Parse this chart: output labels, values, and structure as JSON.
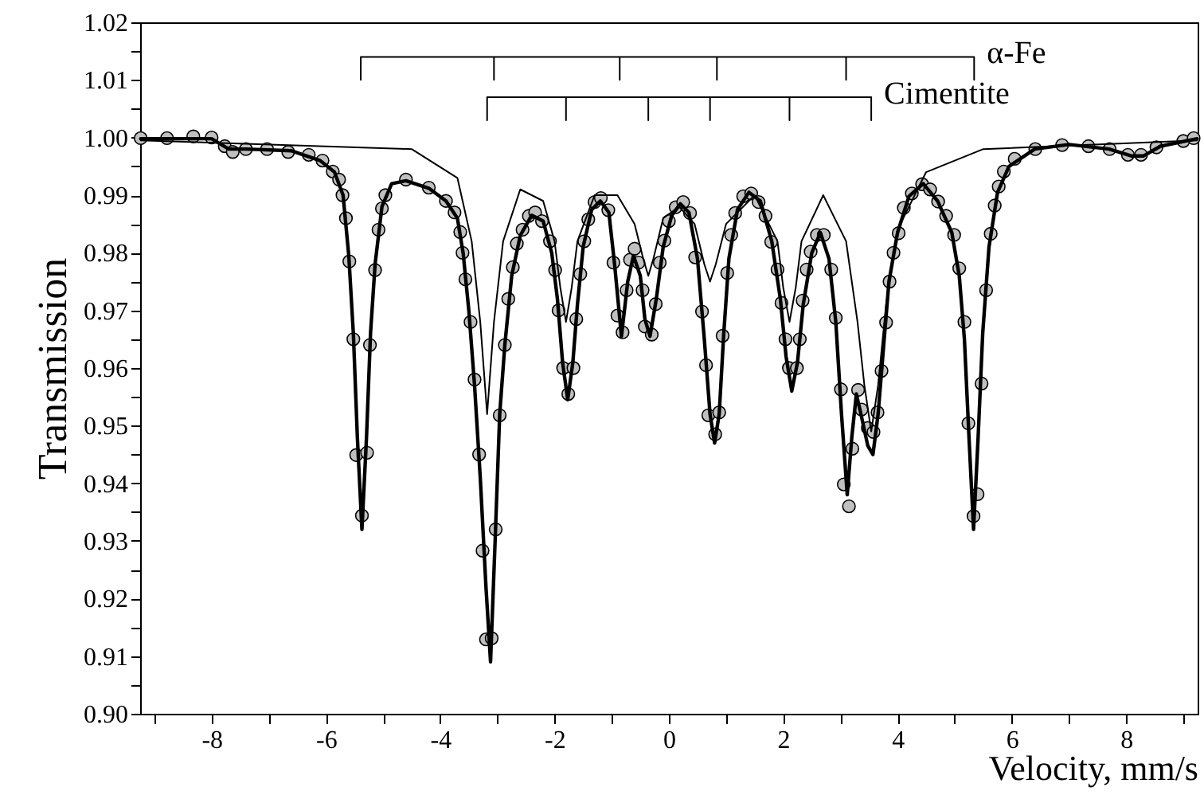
{
  "chart_data": {
    "type": "scatter",
    "xlabel": "Velocity, mm/s",
    "ylabel": "Transmission",
    "xlim": [
      -9.25,
      9.25
    ],
    "xticks": [
      {
        "value": -9,
        "label": null
      },
      -8,
      {
        "value": -7,
        "label": null
      },
      -6,
      {
        "value": -5,
        "label": null
      },
      -4,
      {
        "value": -3,
        "label": null
      },
      -2,
      {
        "value": -1,
        "label": null
      },
      0,
      {
        "value": 1,
        "label": null
      },
      2,
      {
        "value": 3,
        "label": null
      },
      4,
      {
        "value": 5,
        "label": null
      },
      6,
      {
        "value": 7,
        "label": null
      },
      8,
      {
        "value": 9,
        "label": null
      }
    ],
    "ylim": [
      0.9,
      1.02
    ],
    "yticks": [
      {
        "value": 0.9,
        "label": "0.90"
      },
      {
        "value": 0.905,
        "label": null
      },
      {
        "value": 0.91,
        "label": "0.91"
      },
      {
        "value": 0.915,
        "label": null
      },
      {
        "value": 0.92,
        "label": "0.92"
      },
      {
        "value": 0.925,
        "label": null
      },
      {
        "value": 0.93,
        "label": "0.93"
      },
      {
        "value": 0.935,
        "label": null
      },
      {
        "value": 0.94,
        "label": "0.94"
      },
      {
        "value": 0.945,
        "label": null
      },
      {
        "value": 0.95,
        "label": "0.95"
      },
      {
        "value": 0.955,
        "label": null
      },
      {
        "value": 0.96,
        "label": "0.96"
      },
      {
        "value": 0.965,
        "label": null
      },
      {
        "value": 0.97,
        "label": "0.97"
      },
      {
        "value": 0.975,
        "label": null
      },
      {
        "value": 0.98,
        "label": "0.98"
      },
      {
        "value": 0.985,
        "label": null
      },
      {
        "value": 0.99,
        "label": "0.99"
      },
      {
        "value": 0.995,
        "label": null
      },
      {
        "value": 1.0,
        "label": "1.00"
      },
      {
        "value": 1.005,
        "label": null
      },
      {
        "value": 1.01,
        "label": "1.01"
      },
      {
        "value": 1.015,
        "label": null
      },
      {
        "value": 1.02,
        "label": "1.02"
      }
    ],
    "grid": false,
    "series": [
      {
        "color": "#c0c0c0",
        "marker": "circle",
        "x": [
          -9.24,
          -8.78,
          -8.32,
          -8.0,
          -7.77,
          -7.63,
          -7.4,
          -7.03,
          -6.66,
          -6.3,
          -6.06,
          -5.88,
          -5.77,
          -5.71,
          -5.65,
          -5.59,
          -5.52,
          -5.47,
          -5.37,
          -5.28,
          -5.23,
          -5.14,
          -5.08,
          -5.02,
          -4.96,
          -4.6,
          -4.2,
          -3.9,
          -3.75,
          -3.65,
          -3.61,
          -3.56,
          -3.47,
          -3.4,
          -3.32,
          -3.26,
          -3.2,
          -3.1,
          -3.03,
          -2.96,
          -2.87,
          -2.81,
          -2.73,
          -2.66,
          -2.56,
          -2.45,
          -2.34,
          -2.22,
          -2.08,
          -1.99,
          -1.93,
          -1.85,
          -1.76,
          -1.67,
          -1.62,
          -1.55,
          -1.48,
          -1.41,
          -1.3,
          -1.19,
          -1.06,
          -0.97,
          -0.9,
          -0.81,
          -0.74,
          -0.68,
          -0.6,
          -0.53,
          -0.46,
          -0.42,
          -0.3,
          -0.23,
          -0.16,
          -0.08,
          0.0,
          0.12,
          0.25,
          0.37,
          0.46,
          0.58,
          0.65,
          0.69,
          0.81,
          0.88,
          0.94,
          1.02,
          1.09,
          1.16,
          1.3,
          1.44,
          1.57,
          1.69,
          1.79,
          1.9,
          1.97,
          2.04,
          2.1,
          2.24,
          2.29,
          2.34,
          2.41,
          2.48,
          2.59,
          2.71,
          2.84,
          2.92,
          3.01,
          3.06,
          3.15,
          3.21,
          3.31,
          3.37,
          3.48,
          3.58,
          3.65,
          3.72,
          3.8,
          3.86,
          3.93,
          4.02,
          4.11,
          4.25,
          4.43,
          4.57,
          4.71,
          4.85,
          4.99,
          5.08,
          5.17,
          5.24,
          5.33,
          5.4,
          5.47,
          5.55,
          5.63,
          5.7,
          5.77,
          5.86,
          6.05,
          6.41,
          6.88,
          7.34,
          7.71,
          8.03,
          8.26,
          8.53,
          9.0,
          9.18
        ],
        "values": [
          0.9999,
          0.9999,
          1.0002,
          1.0,
          0.9985,
          0.9975,
          0.998,
          0.998,
          0.9975,
          0.997,
          0.996,
          0.9941,
          0.9927,
          0.99,
          0.986,
          0.9785,
          0.965,
          0.9449,
          0.9344,
          0.9453,
          0.964,
          0.977,
          0.984,
          0.9877,
          0.99,
          0.9927,
          0.9913,
          0.989,
          0.987,
          0.9836,
          0.98,
          0.9754,
          0.968,
          0.958,
          0.945,
          0.9283,
          0.9129,
          0.9131,
          0.932,
          0.9518,
          0.964,
          0.972,
          0.9775,
          0.9816,
          0.984,
          0.9864,
          0.987,
          0.9855,
          0.982,
          0.977,
          0.97,
          0.96,
          0.9555,
          0.96,
          0.9685,
          0.9763,
          0.982,
          0.9858,
          0.9888,
          0.9895,
          0.9874,
          0.9783,
          0.9691,
          0.9662,
          0.9735,
          0.9788,
          0.9807,
          0.9783,
          0.9735,
          0.9672,
          0.9658,
          0.9711,
          0.9783,
          0.9821,
          0.9855,
          0.9879,
          0.9888,
          0.9869,
          0.9792,
          0.9698,
          0.9605,
          0.9518,
          0.9485,
          0.9523,
          0.9656,
          0.9765,
          0.9831,
          0.9869,
          0.9898,
          0.9903,
          0.9888,
          0.9864,
          0.9819,
          0.9771,
          0.9713,
          0.965,
          0.96,
          0.96,
          0.965,
          0.9717,
          0.9771,
          0.9802,
          0.9831,
          0.9831,
          0.9771,
          0.9687,
          0.9563,
          0.9398,
          0.936,
          0.946,
          0.9562,
          0.9528,
          0.9496,
          0.9489,
          0.9523,
          0.9595,
          0.9679,
          0.975,
          0.98,
          0.9834,
          0.9878,
          0.9903,
          0.9919,
          0.991,
          0.9889,
          0.9864,
          0.9831,
          0.9773,
          0.968,
          0.9504,
          0.9343,
          0.9381,
          0.9573,
          0.9735,
          0.9833,
          0.9882,
          0.9915,
          0.9941,
          0.9963,
          0.998,
          0.9987,
          0.9985,
          0.998,
          0.997,
          0.997,
          0.9983,
          0.9994,
          0.9999
        ]
      },
      {
        "type": "line",
        "marker": "none",
        "line_style": "solid",
        "color": "#000000",
        "x": [
          -9.24,
          -8.0,
          -7.7,
          -7.4,
          -6.6,
          -6.1,
          -5.85,
          -5.7,
          -5.6,
          -5.52,
          -5.45,
          -5.37,
          -5.29,
          -5.22,
          -5.14,
          -5.02,
          -4.85,
          -4.6,
          -4.2,
          -3.9,
          -3.7,
          -3.6,
          -3.5,
          -3.4,
          -3.3,
          -3.2,
          -3.12,
          -3.04,
          -2.96,
          -2.87,
          -2.75,
          -2.6,
          -2.4,
          -2.2,
          -2.05,
          -1.95,
          -1.86,
          -1.77,
          -1.68,
          -1.6,
          -1.5,
          -1.35,
          -1.2,
          -1.05,
          -0.95,
          -0.83,
          -0.72,
          -0.62,
          -0.5,
          -0.42,
          -0.33,
          -0.22,
          -0.1,
          0.05,
          0.2,
          0.35,
          0.5,
          0.62,
          0.72,
          0.8,
          0.88,
          0.96,
          1.05,
          1.2,
          1.4,
          1.6,
          1.8,
          1.95,
          2.05,
          2.15,
          2.25,
          2.35,
          2.5,
          2.65,
          2.8,
          2.92,
          3.02,
          3.12,
          3.2,
          3.28,
          3.36,
          3.48,
          3.57,
          3.66,
          3.75,
          3.85,
          4.0,
          4.2,
          4.45,
          4.7,
          4.95,
          5.08,
          5.17,
          5.25,
          5.33,
          5.41,
          5.49,
          5.6,
          5.75,
          5.95,
          6.4,
          7.0,
          7.7,
          8.1,
          8.3,
          8.6,
          9.24
        ],
        "values": [
          0.9998,
          0.9998,
          0.998,
          0.998,
          0.9977,
          0.996,
          0.994,
          0.99,
          0.9795,
          0.966,
          0.948,
          0.932,
          0.948,
          0.966,
          0.978,
          0.988,
          0.992,
          0.9925,
          0.9912,
          0.989,
          0.986,
          0.98,
          0.97,
          0.957,
          0.941,
          0.922,
          0.909,
          0.93,
          0.952,
          0.964,
          0.976,
          0.983,
          0.9865,
          0.9855,
          0.98,
          0.972,
          0.961,
          0.9545,
          0.961,
          0.971,
          0.981,
          0.9875,
          0.989,
          0.987,
          0.978,
          0.9655,
          0.975,
          0.9795,
          0.976,
          0.9685,
          0.9655,
          0.972,
          0.981,
          0.9865,
          0.9885,
          0.987,
          0.979,
          0.965,
          0.952,
          0.947,
          0.952,
          0.966,
          0.979,
          0.9875,
          0.9905,
          0.989,
          0.982,
          0.972,
          0.962,
          0.956,
          0.961,
          0.971,
          0.98,
          0.9835,
          0.979,
          0.968,
          0.952,
          0.938,
          0.948,
          0.9555,
          0.952,
          0.9465,
          0.945,
          0.952,
          0.963,
          0.975,
          0.9835,
          0.9898,
          0.992,
          0.989,
          0.9835,
          0.976,
          0.965,
          0.948,
          0.932,
          0.948,
          0.966,
          0.981,
          0.9905,
          0.995,
          0.998,
          0.9988,
          0.998,
          0.9968,
          0.9968,
          0.9985,
          0.9998
        ]
      },
      {
        "type": "line",
        "marker": "none",
        "line_style": "solid",
        "color": "#000000",
        "x": [
          -9.24,
          -4.5,
          -3.7,
          -3.45,
          -3.3,
          -3.18,
          -3.06,
          -2.9,
          -2.6,
          -2.2,
          -2.0,
          -1.9,
          -1.8,
          -1.7,
          -1.6,
          -1.3,
          -0.9,
          -0.6,
          -0.45,
          -0.36,
          -0.27,
          -0.1,
          0.18,
          0.45,
          0.62,
          0.72,
          0.82,
          1.0,
          1.5,
          1.9,
          2.0,
          2.11,
          2.22,
          2.32,
          2.7,
          3.1,
          3.3,
          3.42,
          3.54,
          3.66,
          3.8,
          4.0,
          4.5,
          5.5,
          9.24
        ],
        "values": [
          0.9995,
          0.998,
          0.993,
          0.982,
          0.968,
          0.952,
          0.968,
          0.982,
          0.991,
          0.989,
          0.982,
          0.974,
          0.968,
          0.974,
          0.982,
          0.99,
          0.99,
          0.985,
          0.979,
          0.976,
          0.979,
          0.986,
          0.988,
          0.985,
          0.978,
          0.975,
          0.978,
          0.985,
          0.99,
          0.982,
          0.974,
          0.968,
          0.974,
          0.982,
          0.99,
          0.982,
          0.968,
          0.957,
          0.949,
          0.957,
          0.971,
          0.984,
          0.994,
          0.998,
          0.9995
        ]
      },
      {
        "type": "line",
        "marker": "none",
        "line_style": "solid",
        "name": "α-Fe",
        "color": "#000000",
        "x": [
          -5.39,
          -5.39,
          -3.06,
          -3.06,
          -3.06,
          -0.86,
          -0.86,
          -0.86,
          0.84,
          0.84,
          0.84,
          3.1,
          3.1,
          3.1,
          5.34,
          5.34
        ],
        "values": [
          1.01,
          1.014,
          1.014,
          1.01,
          1.014,
          1.014,
          1.01,
          1.014,
          1.014,
          1.01,
          1.014,
          1.014,
          1.01,
          1.014,
          1.014,
          1.01
        ]
      },
      {
        "type": "line",
        "marker": "none",
        "line_style": "solid",
        "name": "Cimentite",
        "color": "#000000",
        "x": [
          -3.18,
          -3.18,
          -1.8,
          -1.8,
          -1.8,
          -0.36,
          -0.36,
          -0.36,
          0.72,
          0.72,
          0.72,
          2.11,
          2.11,
          2.11,
          3.54,
          3.54
        ],
        "values": [
          1.003,
          1.007,
          1.007,
          1.003,
          1.007,
          1.007,
          1.003,
          1.007,
          1.007,
          1.003,
          1.007,
          1.007,
          1.003,
          1.007,
          1.007,
          1.003
        ]
      }
    ]
  }
}
